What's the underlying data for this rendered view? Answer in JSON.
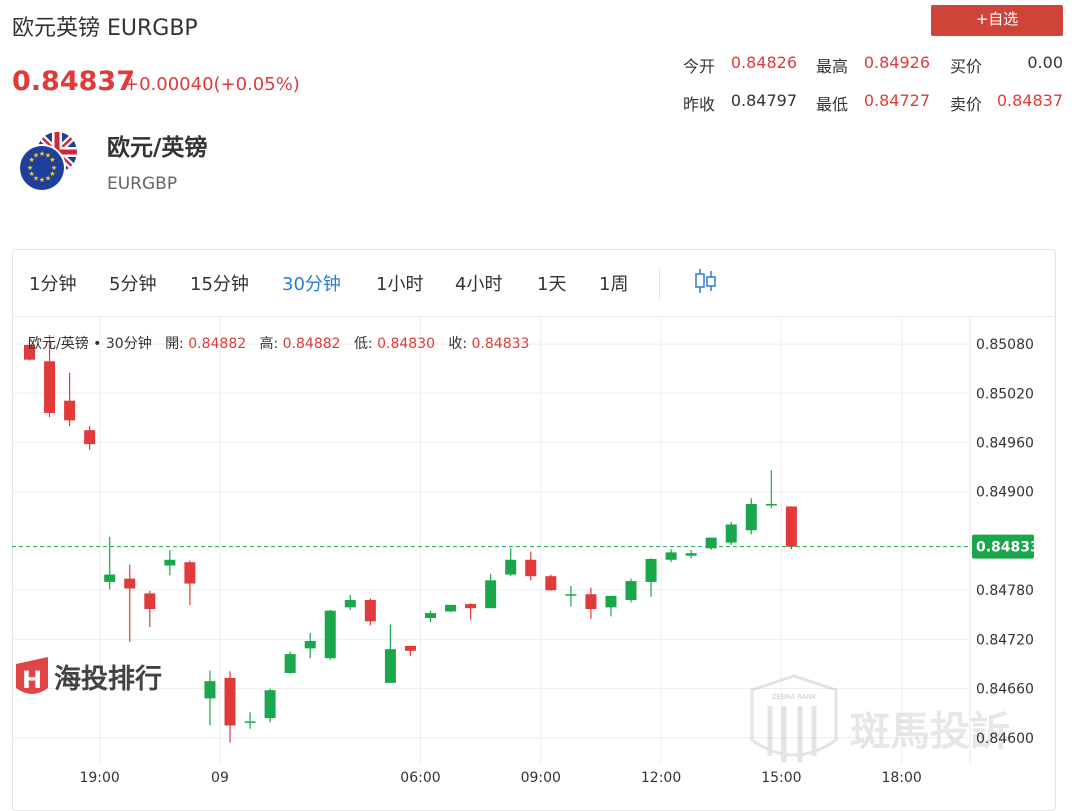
{
  "header": {
    "title": "欧元英镑 EURGBP",
    "price": "0.84837",
    "change": "+0.00040(+0.05%)",
    "watch_button": "+自选"
  },
  "quote": {
    "open_label": "今开",
    "open": "0.84826",
    "high_label": "最高",
    "high": "0.84926",
    "bid_label": "买价",
    "bid": "0.00",
    "prev_close_label": "昨收",
    "prev_close": "0.84797",
    "low_label": "最低",
    "low": "0.84727",
    "ask_label": "卖价",
    "ask": "0.84837"
  },
  "pair": {
    "name": "欧元/英镑",
    "code": "EURGBP",
    "icon": "eu-uk-flag-icon"
  },
  "tabs": [
    "1分钟",
    "5分钟",
    "15分钟",
    "30分钟",
    "1小时",
    "4小时",
    "1天",
    "1周"
  ],
  "active_tab": "30分钟",
  "toolbar_icon": "candlestick-type-icon",
  "ohlc": {
    "symbol": "欧元/英镑 • 30分钟",
    "open_label": "開:",
    "open": "0.84882",
    "high_label": "高:",
    "high": "0.84882",
    "low_label": "低:",
    "low": "0.84830",
    "close_label": "收:",
    "close": "0.84833"
  },
  "watermarks": {
    "left": "海投排行",
    "right": "斑馬投訴",
    "right_badge": "ZEBRA RANK"
  },
  "colors": {
    "up": "#1aa64a",
    "down": "#e03a3a",
    "accent": "#2b7dd3",
    "button": "#cf4338",
    "last_price_line": "#1aa64a"
  },
  "chart_data": {
    "type": "candlestick",
    "interval": "30分钟",
    "title": "",
    "y_ticks": [
      0.8508,
      0.8502,
      0.8496,
      0.849,
      0.84833,
      0.8478,
      0.8472,
      0.8466,
      0.846
    ],
    "y_tick_labels": [
      "0.85080",
      "0.85020",
      "0.84960",
      "0.84900",
      "0.84833",
      "0.84780",
      "0.84720",
      "0.84660",
      "0.84600"
    ],
    "ylim": [
      0.84568,
      0.85113
    ],
    "last_price": 0.84833,
    "last_price_label": "0.84833",
    "x_tick_labels": [
      "19:00",
      "09",
      "06:00",
      "09:00",
      "12:00",
      "15:00",
      "18:00"
    ],
    "x_tick_index": [
      3.5,
      9.5,
      19.5,
      25.5,
      31.5,
      37.5,
      43.5
    ],
    "candles": [
      {
        "o": 0.85079,
        "h": 0.85087,
        "l": 0.8506,
        "c": 0.85061
      },
      {
        "o": 0.85059,
        "h": 0.85091,
        "l": 0.84991,
        "c": 0.84996
      },
      {
        "o": 0.85011,
        "h": 0.85045,
        "l": 0.8498,
        "c": 0.84987
      },
      {
        "o": 0.84975,
        "h": 0.8498,
        "l": 0.84951,
        "c": 0.84958
      },
      {
        "o": 0.8479,
        "h": 0.84845,
        "l": 0.84781,
        "c": 0.84799
      },
      {
        "o": 0.84794,
        "h": 0.84811,
        "l": 0.84717,
        "c": 0.84782
      },
      {
        "o": 0.84776,
        "h": 0.84779,
        "l": 0.84735,
        "c": 0.84757
      },
      {
        "o": 0.8481,
        "h": 0.84829,
        "l": 0.84798,
        "c": 0.84817
      },
      {
        "o": 0.84814,
        "h": 0.84816,
        "l": 0.84762,
        "c": 0.84788
      },
      {
        "o": 0.84648,
        "h": 0.84682,
        "l": 0.84615,
        "c": 0.84669
      },
      {
        "o": 0.84673,
        "h": 0.84681,
        "l": 0.84594,
        "c": 0.84615
      },
      {
        "o": 0.8462,
        "h": 0.84631,
        "l": 0.84611,
        "c": 0.8462
      },
      {
        "o": 0.84624,
        "h": 0.8466,
        "l": 0.84619,
        "c": 0.84658
      },
      {
        "o": 0.84679,
        "h": 0.84705,
        "l": 0.84678,
        "c": 0.84702
      },
      {
        "o": 0.84709,
        "h": 0.84728,
        "l": 0.84697,
        "c": 0.84718
      },
      {
        "o": 0.84697,
        "h": 0.84756,
        "l": 0.84695,
        "c": 0.84755
      },
      {
        "o": 0.84759,
        "h": 0.84774,
        "l": 0.84756,
        "c": 0.84768
      },
      {
        "o": 0.84768,
        "h": 0.8477,
        "l": 0.84737,
        "c": 0.84742
      },
      {
        "o": 0.84667,
        "h": 0.84738,
        "l": 0.84667,
        "c": 0.84708
      },
      {
        "o": 0.84712,
        "h": 0.84712,
        "l": 0.847,
        "c": 0.84706
      },
      {
        "o": 0.84746,
        "h": 0.84755,
        "l": 0.84741,
        "c": 0.84752
      },
      {
        "o": 0.84754,
        "h": 0.84762,
        "l": 0.84753,
        "c": 0.84762
      },
      {
        "o": 0.84763,
        "h": 0.84764,
        "l": 0.84744,
        "c": 0.84758
      },
      {
        "o": 0.84758,
        "h": 0.848,
        "l": 0.84758,
        "c": 0.84792
      },
      {
        "o": 0.84799,
        "h": 0.84831,
        "l": 0.84797,
        "c": 0.84817
      },
      {
        "o": 0.84817,
        "h": 0.84827,
        "l": 0.84792,
        "c": 0.84797
      },
      {
        "o": 0.84797,
        "h": 0.84799,
        "l": 0.84779,
        "c": 0.8478
      },
      {
        "o": 0.84775,
        "h": 0.84785,
        "l": 0.8476,
        "c": 0.84775
      },
      {
        "o": 0.84775,
        "h": 0.84783,
        "l": 0.84745,
        "c": 0.84757
      },
      {
        "o": 0.84759,
        "h": 0.84773,
        "l": 0.84748,
        "c": 0.84773
      },
      {
        "o": 0.84768,
        "h": 0.84794,
        "l": 0.84765,
        "c": 0.84791
      },
      {
        "o": 0.8479,
        "h": 0.84819,
        "l": 0.84772,
        "c": 0.84818
      },
      {
        "o": 0.84817,
        "h": 0.8483,
        "l": 0.84814,
        "c": 0.84826
      },
      {
        "o": 0.84822,
        "h": 0.84829,
        "l": 0.84819,
        "c": 0.84825
      },
      {
        "o": 0.84831,
        "h": 0.84843,
        "l": 0.84829,
        "c": 0.84844
      },
      {
        "o": 0.84838,
        "h": 0.84863,
        "l": 0.84835,
        "c": 0.8486
      },
      {
        "o": 0.84853,
        "h": 0.84892,
        "l": 0.84848,
        "c": 0.84885
      },
      {
        "o": 0.84885,
        "h": 0.84926,
        "l": 0.8488,
        "c": 0.84885
      },
      {
        "o": 0.84882,
        "h": 0.84882,
        "l": 0.8483,
        "c": 0.84833
      }
    ]
  }
}
